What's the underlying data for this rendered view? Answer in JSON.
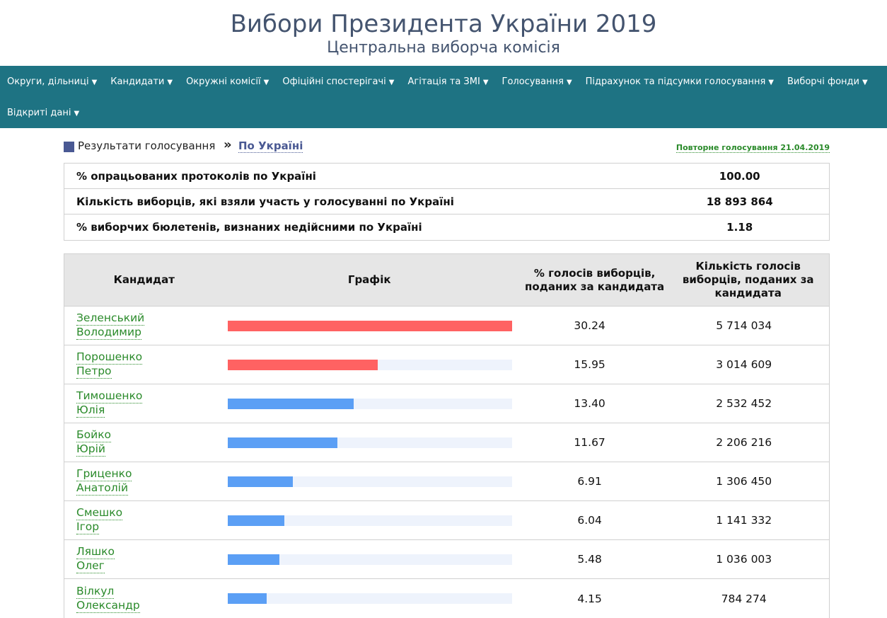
{
  "header": {
    "title": "Вибори Президента України 2019",
    "subtitle": "Центральна виборча комісія"
  },
  "nav": {
    "items": [
      "Округи, дільниці",
      "Кандидати",
      "Окружні комісії",
      "Офіційні спостерігачі",
      "Агітація та ЗМІ",
      "Голосування",
      "Підрахунок та підсумки голосування",
      "Виборчі фонди",
      "Відкриті дані"
    ],
    "caret_icon": "caret-down-icon"
  },
  "breadcrumb": {
    "text": "Результати голосування",
    "separator": "»",
    "link": "По Україні",
    "repeat_link": "Повторне голосування 21.04.2019"
  },
  "summary": [
    {
      "label": "% опрацьованих протоколів по Україні",
      "value": "100.00"
    },
    {
      "label": "Кількість виборців, які взяли участь у голосуванні по Україні",
      "value": "18 893 864"
    },
    {
      "label": "% виборчих бюлетенів, визнаних недійсними по Україні",
      "value": "1.18"
    }
  ],
  "results": {
    "headers": {
      "candidate": "Кандидат",
      "chart": "Графік",
      "percent": "% голосів виборців, поданих за кандидата",
      "votes": "Кількість голосів виборців, поданих за кандидата"
    },
    "colors": {
      "leader": "#ff6262",
      "other": "#5b9ff5",
      "track": "#eef3fc"
    }
  },
  "chart_data": {
    "type": "bar",
    "categories": [
      "Зеленський Володимир",
      "Порошенко Петро",
      "Тимошенко Юлія",
      "Бойко Юрій",
      "Гриценко Анатолій",
      "Смешко Ігор",
      "Ляшко Олег",
      "Вілкул Олександр"
    ],
    "first_names": [
      "Зеленський",
      "Порошенко",
      "Тимошенко",
      "Бойко",
      "Гриценко",
      "Смешко",
      "Ляшко",
      "Вілкул"
    ],
    "second_names": [
      "Володимир",
      "Петро",
      "Юлія",
      "Юрій",
      "Анатолій",
      "Ігор",
      "Олег",
      "Олександр"
    ],
    "percent_labels": [
      "30.24",
      "15.95",
      "13.40",
      "11.67",
      "6.91",
      "6.04",
      "5.48",
      "4.15"
    ],
    "values": [
      30.24,
      15.95,
      13.4,
      11.67,
      6.91,
      6.04,
      5.48,
      4.15
    ],
    "votes": [
      "5 714 034",
      "3 014 609",
      "2 532 452",
      "2 206 216",
      "1 306 450",
      "1 141 332",
      "1 036 003",
      "784 274"
    ],
    "highlighted": [
      true,
      true,
      false,
      false,
      false,
      false,
      false,
      false
    ],
    "xlim": [
      0,
      30.24
    ]
  }
}
